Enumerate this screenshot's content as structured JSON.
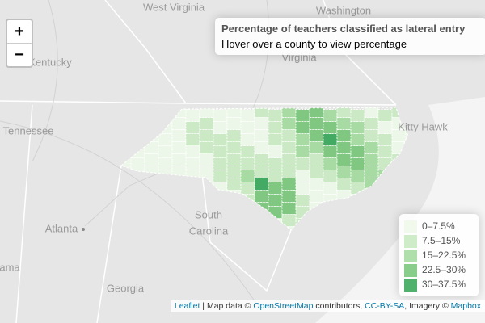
{
  "zoom": {
    "in": "+",
    "out": "−"
  },
  "info": {
    "title": "Percentage of teachers classified as lateral entry",
    "subtitle": "Hover over a county to view percentage"
  },
  "places": [
    {
      "label": "West Virginia"
    },
    {
      "label": "Washington"
    },
    {
      "label": "Kentucky"
    },
    {
      "label": "Virginia"
    },
    {
      "label": "Tennessee"
    },
    {
      "label": "Kitty Hawk"
    },
    {
      "label": "Atlanta"
    },
    {
      "label": "South"
    },
    {
      "label": "Carolina"
    },
    {
      "label": "Georgia"
    },
    {
      "label": "ama"
    }
  ],
  "legend": [
    {
      "label": "0–7.5%",
      "color": "#edf8e9"
    },
    {
      "label": "7.5–15%",
      "color": "#c7e9c0"
    },
    {
      "label": "15–22.5%",
      "color": "#a1d99b"
    },
    {
      "label": "22.5–30%",
      "color": "#74c476"
    },
    {
      "label": "30–37.5%",
      "color": "#31a354"
    }
  ],
  "attribution": [
    {
      "text": "Leaflet",
      "link": true
    },
    {
      "text": " | Map data © ",
      "link": false
    },
    {
      "text": "OpenStreetMap",
      "link": true
    },
    {
      "text": " contributors, ",
      "link": false
    },
    {
      "text": "CC-BY-SA",
      "link": true
    },
    {
      "text": ", Imagery © ",
      "link": false
    },
    {
      "text": "Mapbox",
      "link": true
    }
  ]
}
